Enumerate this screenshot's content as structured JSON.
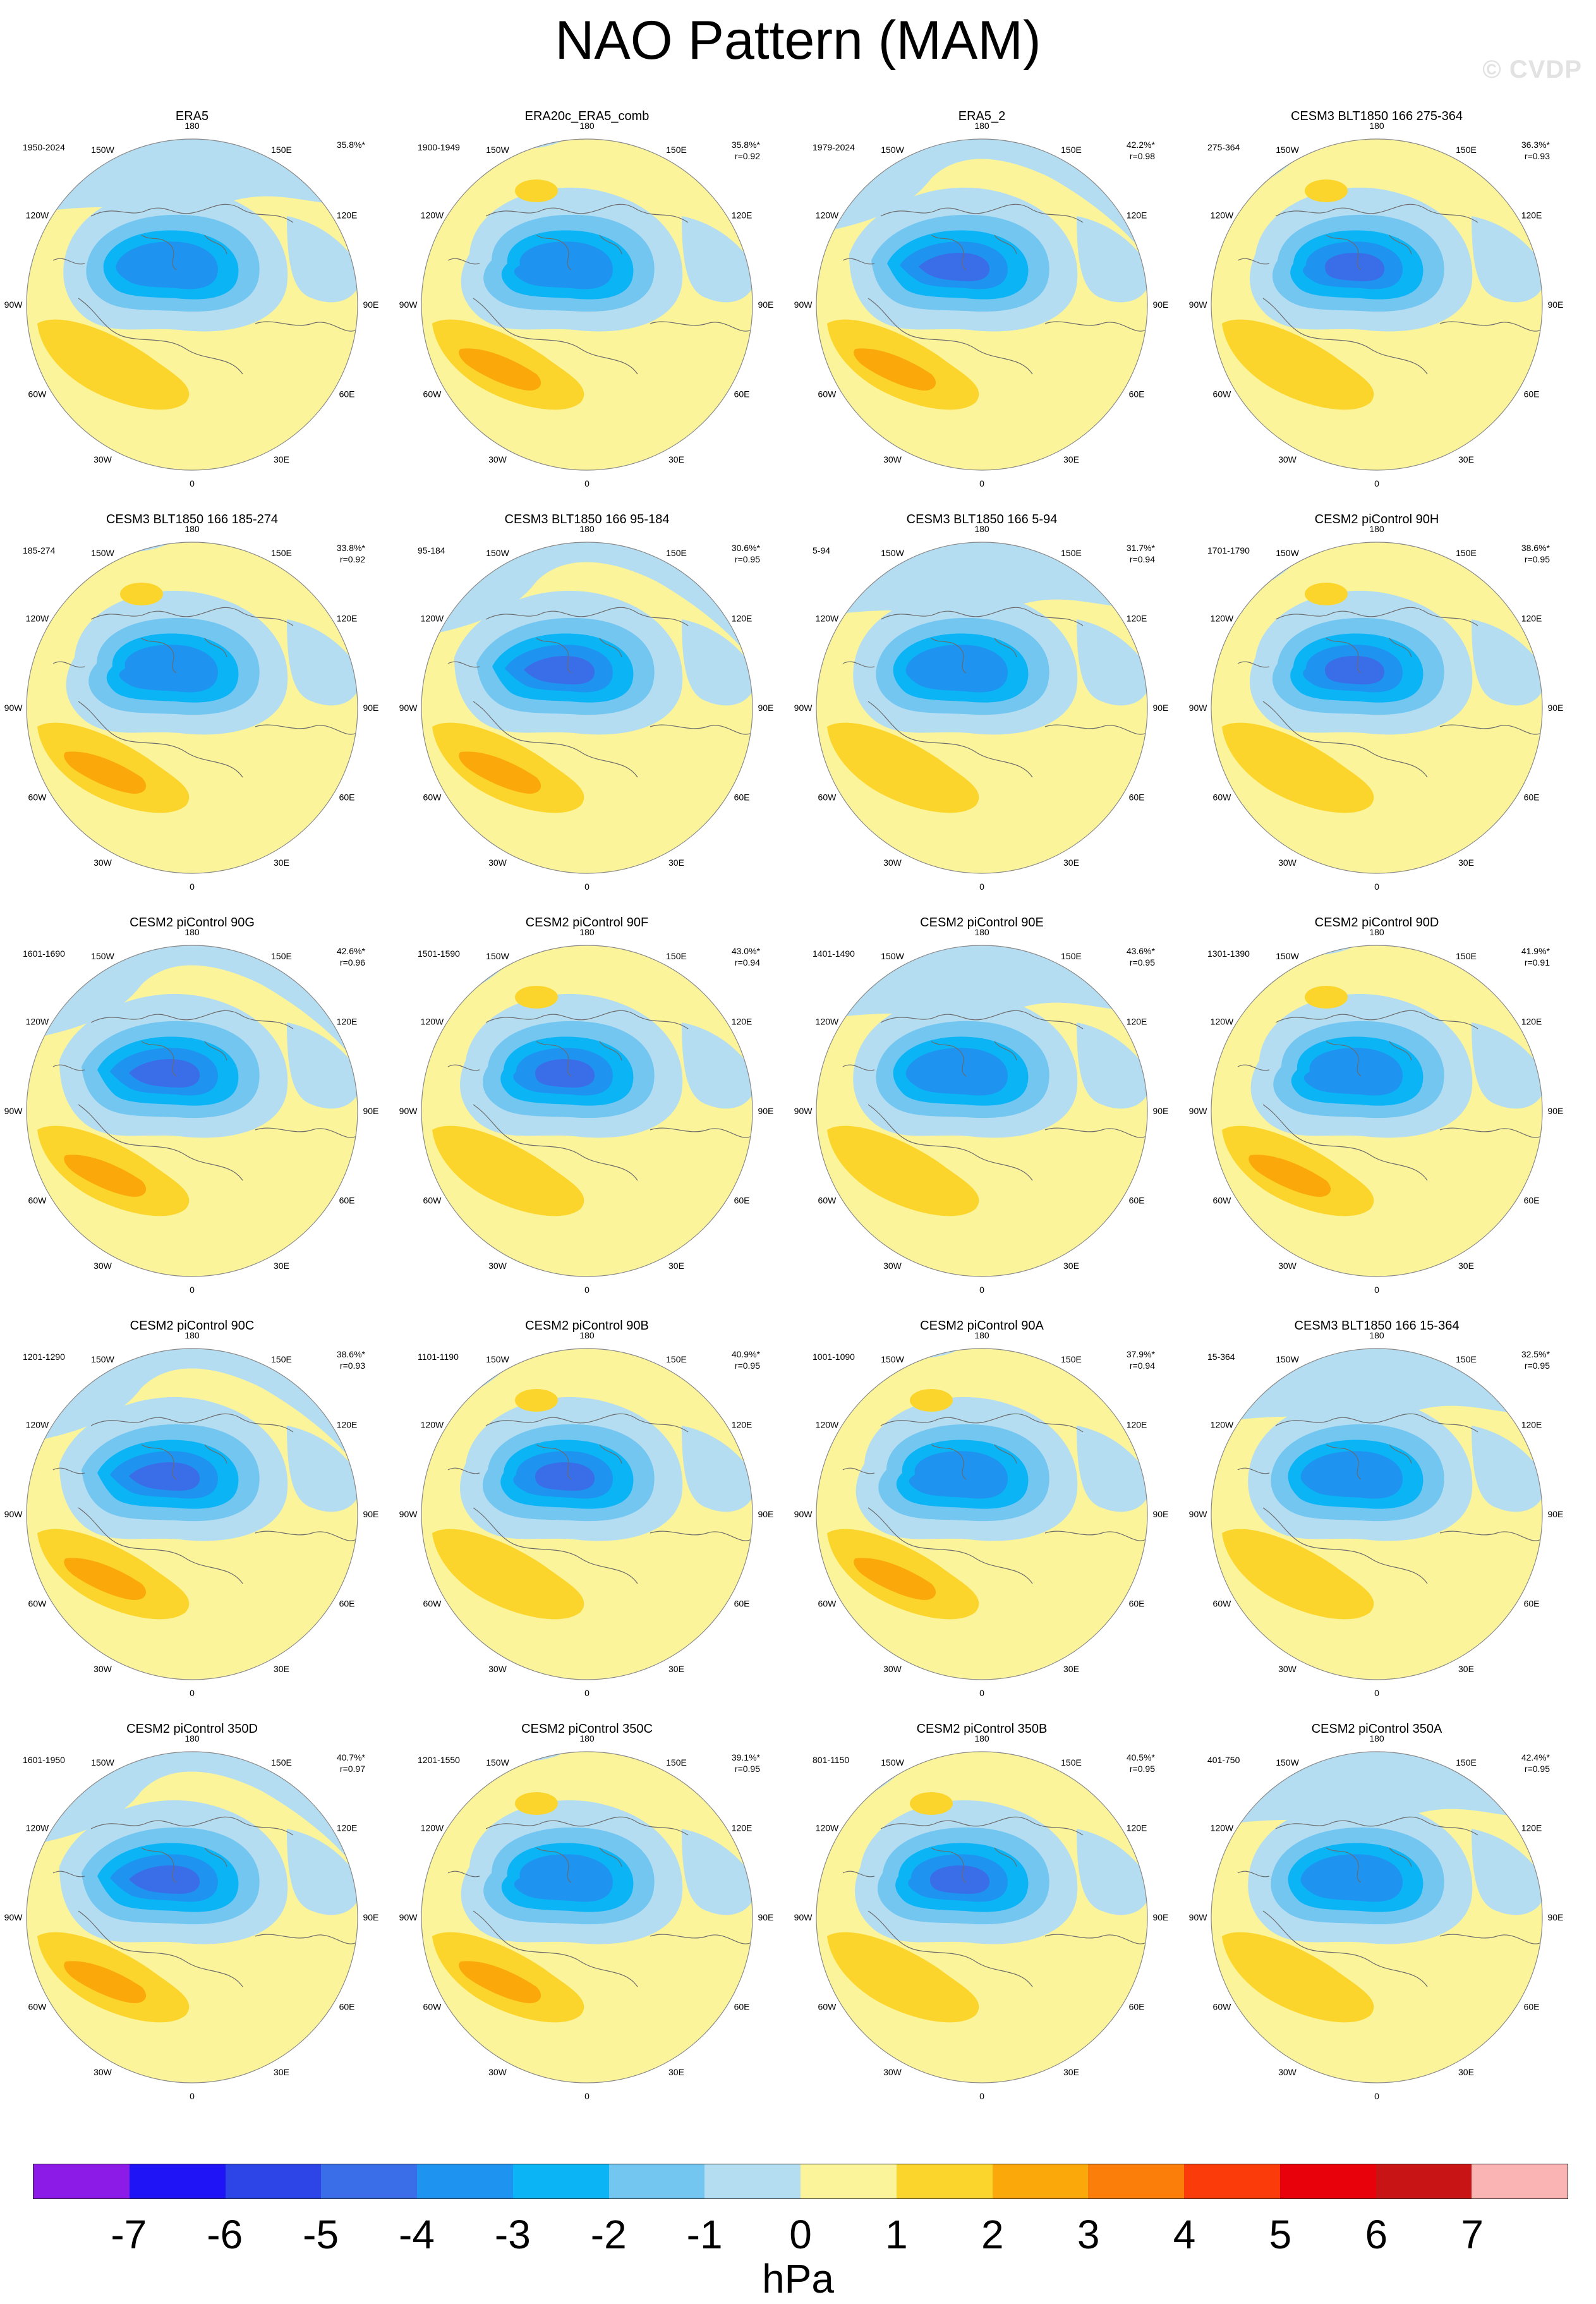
{
  "title": "NAO Pattern (MAM)",
  "watermark": "© CVDP",
  "lon_labels": [
    "180",
    "150E",
    "120E",
    "90E",
    "60E",
    "30E",
    "0",
    "30W",
    "60W",
    "90W",
    "120W",
    "150W"
  ],
  "panels": [
    {
      "title": "ERA5",
      "years": "1950-2024",
      "pct": "35.8%*",
      "r": "",
      "variant": 0
    },
    {
      "title": "ERA20c_ERA5_comb",
      "years": "1900-1949",
      "pct": "35.8%*",
      "r": "r=0.92",
      "variant": 1
    },
    {
      "title": "ERA5_2",
      "years": "1979-2024",
      "pct": "42.2%*",
      "r": "r=0.98",
      "variant": 2
    },
    {
      "title": "CESM3 BLT1850 166 275-364",
      "years": "275-364",
      "pct": "36.3%*",
      "r": "r=0.93",
      "variant": 3
    },
    {
      "title": "CESM3 BLT1850 166 185-274",
      "years": "185-274",
      "pct": "33.8%*",
      "r": "r=0.92",
      "variant": 1
    },
    {
      "title": "CESM3 BLT1850 166 95-184",
      "years": "95-184",
      "pct": "30.6%*",
      "r": "r=0.95",
      "variant": 2
    },
    {
      "title": "CESM3 BLT1850 166 5-94",
      "years": "5-94",
      "pct": "31.7%*",
      "r": "r=0.94",
      "variant": 0
    },
    {
      "title": "CESM2 piControl 90H",
      "years": "1701-1790",
      "pct": "38.6%*",
      "r": "r=0.95",
      "variant": 3
    },
    {
      "title": "CESM2 piControl 90G",
      "years": "1601-1690",
      "pct": "42.6%*",
      "r": "r=0.96",
      "variant": 2
    },
    {
      "title": "CESM2 piControl 90F",
      "years": "1501-1590",
      "pct": "43.0%*",
      "r": "r=0.94",
      "variant": 3
    },
    {
      "title": "CESM2 piControl 90E",
      "years": "1401-1490",
      "pct": "43.6%*",
      "r": "r=0.95",
      "variant": 0
    },
    {
      "title": "CESM2 piControl 90D",
      "years": "1301-1390",
      "pct": "41.9%*",
      "r": "r=0.91",
      "variant": 1
    },
    {
      "title": "CESM2 piControl 90C",
      "years": "1201-1290",
      "pct": "38.6%*",
      "r": "r=0.93",
      "variant": 2
    },
    {
      "title": "CESM2 piControl 90B",
      "years": "1101-1190",
      "pct": "40.9%*",
      "r": "r=0.95",
      "variant": 3
    },
    {
      "title": "CESM2 piControl 90A",
      "years": "1001-1090",
      "pct": "37.9%*",
      "r": "r=0.94",
      "variant": 1
    },
    {
      "title": "CESM3 BLT1850 166 15-364",
      "years": "15-364",
      "pct": "32.5%*",
      "r": "r=0.95",
      "variant": 0
    },
    {
      "title": "CESM2 piControl 350D",
      "years": "1601-1950",
      "pct": "40.7%*",
      "r": "r=0.97",
      "variant": 2
    },
    {
      "title": "CESM2 piControl 350C",
      "years": "1201-1550",
      "pct": "39.1%*",
      "r": "r=0.95",
      "variant": 1
    },
    {
      "title": "CESM2 piControl 350B",
      "years": "801-1150",
      "pct": "40.5%*",
      "r": "r=0.95",
      "variant": 3
    },
    {
      "title": "CESM2 piControl 350A",
      "years": "401-750",
      "pct": "42.4%*",
      "r": "r=0.95",
      "variant": 0
    }
  ],
  "colorbar": {
    "units": "hPa",
    "tick_labels": [
      "-7",
      "-6",
      "-5",
      "-4",
      "-3",
      "-2",
      "-1",
      "0",
      "1",
      "2",
      "3",
      "4",
      "5",
      "6",
      "7"
    ],
    "colors": [
      "#8c1be8",
      "#1e14f5",
      "#2d44e6",
      "#3a6ee8",
      "#1e93f0",
      "#0ab4f5",
      "#72c6f0",
      "#b4ddf2",
      "#fbf49a",
      "#fbd52c",
      "#fba90a",
      "#fb7e0a",
      "#fb3b0a",
      "#e8000a",
      "#c81414",
      "#fbb4b4"
    ]
  }
}
